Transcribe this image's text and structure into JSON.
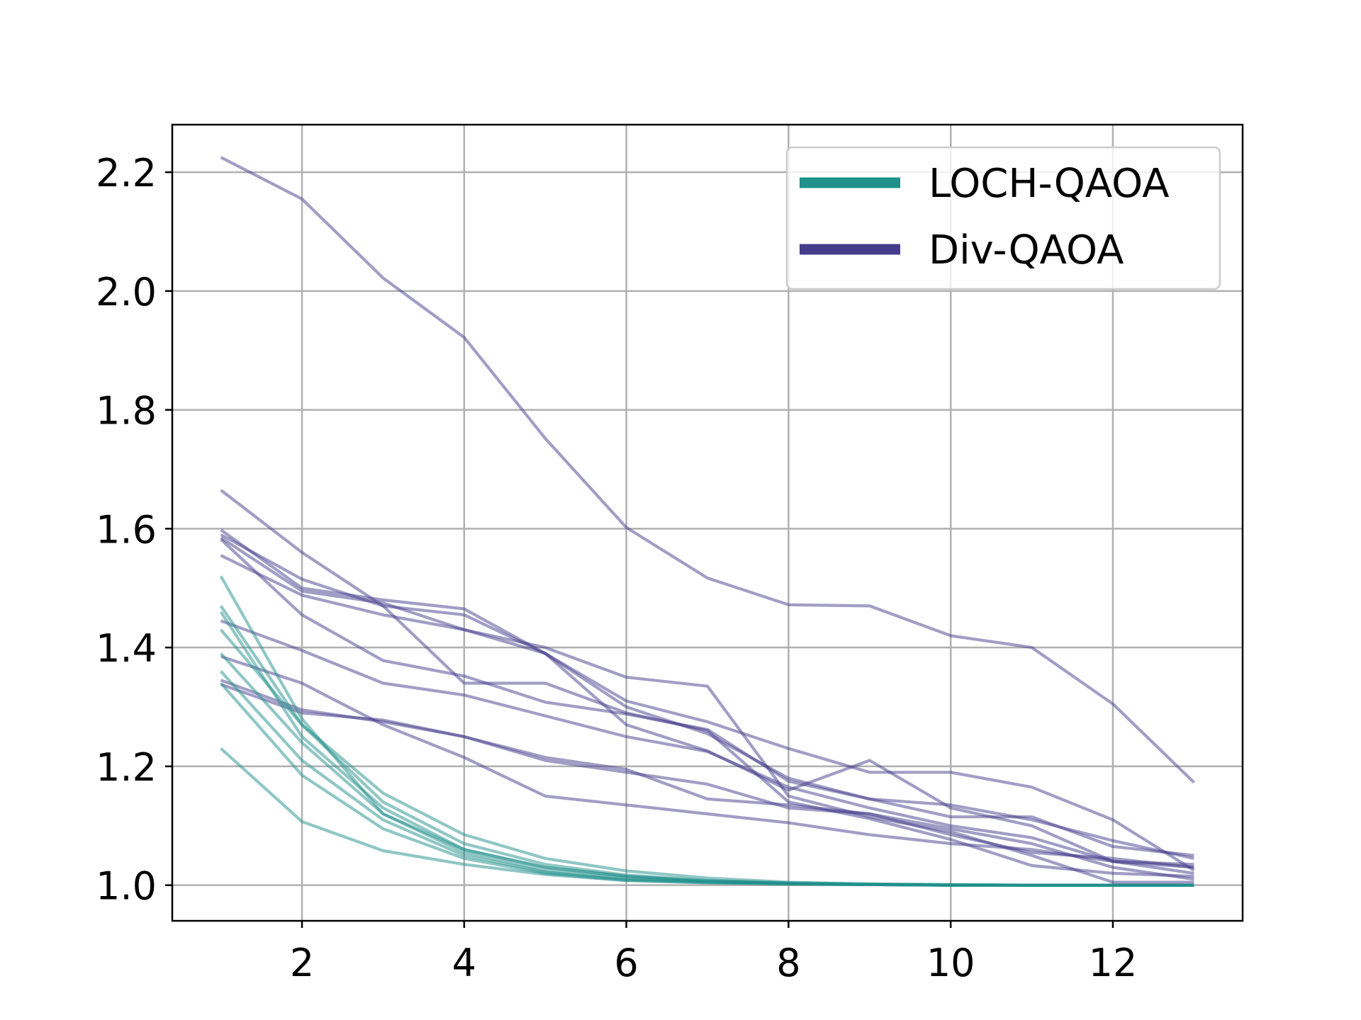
{
  "chart_data": {
    "type": "line",
    "title": "",
    "xlabel": "",
    "ylabel": "",
    "xlim": [
      0.4,
      13.6
    ],
    "ylim": [
      0.94,
      2.28
    ],
    "xticks": [
      2,
      4,
      6,
      8,
      10,
      12
    ],
    "yticks": [
      1.0,
      1.2,
      1.4,
      1.6,
      1.8,
      2.0,
      2.2
    ],
    "xtick_labels": [
      "2",
      "4",
      "6",
      "8",
      "10",
      "12"
    ],
    "ytick_labels": [
      "1.0",
      "1.2",
      "1.4",
      "1.6",
      "1.8",
      "2.0",
      "2.2"
    ],
    "grid": true,
    "legend_position": "top-right",
    "legend": [
      {
        "label": "LOCH-QAOA",
        "color": "#20908c"
      },
      {
        "label": "Div-QAOA",
        "color": "#463c8c"
      }
    ],
    "x": [
      1,
      2,
      3,
      4,
      5,
      6,
      7,
      8,
      9,
      10,
      11,
      12,
      13
    ],
    "series": [
      {
        "group": "LOCH-QAOA",
        "values": [
          1.52,
          1.28,
          1.12,
          1.055,
          1.025,
          1.012,
          1.006,
          1.003,
          1.001,
          1.0,
          1.0,
          1.0,
          1.0
        ]
      },
      {
        "group": "LOCH-QAOA",
        "values": [
          1.47,
          1.27,
          1.14,
          1.07,
          1.035,
          1.017,
          1.008,
          1.004,
          1.002,
          1.001,
          1.0,
          1.0,
          1.0
        ]
      },
      {
        "group": "LOCH-QAOA",
        "values": [
          1.46,
          1.25,
          1.13,
          1.06,
          1.03,
          1.015,
          1.007,
          1.003,
          1.001,
          1.0,
          1.0,
          1.0,
          1.0
        ]
      },
      {
        "group": "LOCH-QAOA",
        "values": [
          1.43,
          1.27,
          1.155,
          1.085,
          1.045,
          1.024,
          1.012,
          1.005,
          1.002,
          1.001,
          1.0,
          1.0,
          1.0
        ]
      },
      {
        "group": "LOCH-QAOA",
        "values": [
          1.39,
          1.24,
          1.12,
          1.06,
          1.03,
          1.015,
          1.007,
          1.003,
          1.001,
          1.0,
          1.0,
          1.0,
          1.0
        ]
      },
      {
        "group": "LOCH-QAOA",
        "values": [
          1.36,
          1.21,
          1.11,
          1.05,
          1.022,
          1.01,
          1.005,
          1.002,
          1.001,
          1.0,
          1.0,
          1.0,
          1.0
        ]
      },
      {
        "group": "LOCH-QAOA",
        "values": [
          1.34,
          1.185,
          1.095,
          1.045,
          1.02,
          1.008,
          1.004,
          1.002,
          1.001,
          1.0,
          1.0,
          1.0,
          1.0
        ]
      },
      {
        "group": "LOCH-QAOA",
        "values": [
          1.23,
          1.107,
          1.058,
          1.035,
          1.018,
          1.008,
          1.004,
          1.002,
          1.001,
          1.0,
          1.0,
          1.0,
          1.0
        ]
      },
      {
        "group": "Div-QAOA",
        "values": [
          2.225,
          2.155,
          2.022,
          1.922,
          1.752,
          1.602,
          1.517,
          1.472,
          1.47,
          1.42,
          1.4,
          1.305,
          1.173
        ]
      },
      {
        "group": "Div-QAOA",
        "values": [
          1.665,
          1.56,
          1.47,
          1.34,
          1.34,
          1.29,
          1.26,
          1.14,
          1.112,
          1.077,
          1.033,
          1.02,
          1.015
        ]
      },
      {
        "group": "Div-QAOA",
        "values": [
          1.598,
          1.5,
          1.48,
          1.465,
          1.39,
          1.31,
          1.275,
          1.23,
          1.19,
          1.19,
          1.165,
          1.11,
          1.025
        ]
      },
      {
        "group": "Div-QAOA",
        "values": [
          1.59,
          1.515,
          1.47,
          1.455,
          1.39,
          1.3,
          1.255,
          1.18,
          1.145,
          1.115,
          1.115,
          1.065,
          1.05
        ]
      },
      {
        "group": "Div-QAOA",
        "values": [
          1.585,
          1.495,
          1.475,
          1.43,
          1.39,
          1.27,
          1.226,
          1.16,
          1.21,
          1.13,
          1.1,
          1.04,
          1.035
        ]
      },
      {
        "group": "Div-QAOA",
        "values": [
          1.555,
          1.488,
          1.455,
          1.43,
          1.4,
          1.35,
          1.335,
          1.15,
          1.115,
          1.09,
          1.05,
          1.005,
          1.005
        ]
      },
      {
        "group": "Div-QAOA",
        "values": [
          1.582,
          1.455,
          1.378,
          1.352,
          1.308,
          1.288,
          1.262,
          1.175,
          1.145,
          1.135,
          1.11,
          1.075,
          1.045
        ]
      },
      {
        "group": "Div-QAOA",
        "values": [
          1.445,
          1.395,
          1.34,
          1.32,
          1.285,
          1.25,
          1.225,
          1.165,
          1.13,
          1.1,
          1.08,
          1.04,
          1.03
        ]
      },
      {
        "group": "Div-QAOA",
        "values": [
          1.385,
          1.34,
          1.27,
          1.215,
          1.15,
          1.135,
          1.12,
          1.105,
          1.085,
          1.07,
          1.06,
          1.04,
          1.02
        ]
      },
      {
        "group": "Div-QAOA",
        "values": [
          1.338,
          1.29,
          1.278,
          1.25,
          1.21,
          1.19,
          1.17,
          1.13,
          1.12,
          1.095,
          1.07,
          1.03,
          1.01
        ]
      },
      {
        "group": "Div-QAOA",
        "values": [
          1.345,
          1.295,
          1.275,
          1.25,
          1.215,
          1.195,
          1.145,
          1.135,
          1.12,
          1.085,
          1.055,
          1.045,
          1.03
        ]
      }
    ]
  }
}
